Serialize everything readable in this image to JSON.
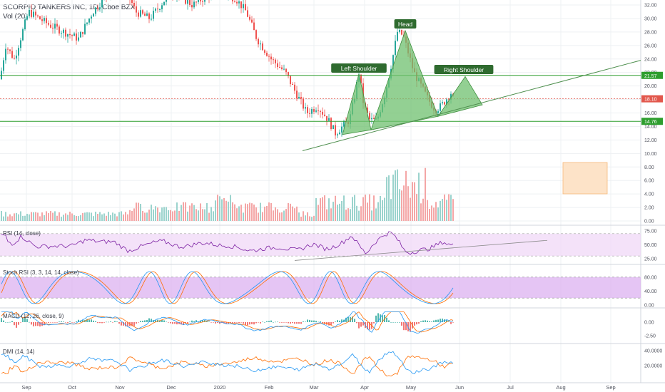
{
  "header": {
    "symbol": "SCORPIO TANKERS INC, 1D, Cboe BZX",
    "volume_label": "Vol (20)"
  },
  "colors": {
    "up": "#26a69a",
    "down": "#ef5350",
    "grid": "#eef0f3",
    "level": "#2e9e2e",
    "pattern_fill": "#6fc06f",
    "trendline": "#4e8f4e",
    "price_line": "#e2574c",
    "rsi_line": "#7b1fa2",
    "rsi_band": "#efd6f7",
    "stoch_band": "#dcb1f0",
    "k_line": "#2196f3",
    "d_line": "#ff6d00",
    "macd_line": "#2196f3",
    "signal_line": "#ff6d00",
    "dmi_plus": "#2196f3",
    "dmi_minus": "#ff6d00",
    "label_bg": "#2f6b2f",
    "orange_box": "#fde3c8"
  },
  "chart_data": {
    "type": "candlestick",
    "timeframe": "1D",
    "x_labels": [
      "Sep",
      "Oct",
      "Nov",
      "Dec",
      "2020",
      "Feb",
      "Mar",
      "Apr",
      "May",
      "Jun",
      "Jul",
      "Aug",
      "Sep"
    ],
    "price_axis": {
      "ticks": [
        "32.00",
        "30.00",
        "28.00",
        "26.00",
        "24.00",
        "22.00",
        "20.00",
        "18.00",
        "16.00",
        "14.00",
        "12.00",
        "10.00",
        "8.00",
        "6.00",
        "4.00",
        "2.00",
        "0.00"
      ],
      "range": [
        0,
        32
      ]
    },
    "price_markers": [
      {
        "label": "21.57",
        "value": 21.57,
        "kind": "resistance"
      },
      {
        "label": "18.10",
        "value": 18.1,
        "kind": "last"
      },
      {
        "label": "14.76",
        "value": 14.76,
        "kind": "support"
      }
    ],
    "pattern": {
      "name": "head-and-shoulders",
      "labels": [
        "Left Shoulder",
        "Head",
        "Right Shoulder"
      ],
      "neckline": "rising"
    },
    "rsi": {
      "title": "RSI (14, close)",
      "ticks": [
        "75.00",
        "50.00",
        "25.00"
      ],
      "bands": [
        70,
        30
      ],
      "last": 49
    },
    "stoch_rsi": {
      "title": "Stoch RSI (3, 3, 14, 14, close)",
      "ticks": [
        "80.00",
        "40.00",
        "0.00"
      ],
      "bands": [
        80,
        20
      ]
    },
    "macd": {
      "title": "MACD (12, 26, close, 9)",
      "ticks": [
        "0.00",
        "-2.50"
      ]
    },
    "dmi": {
      "title": "DMI (14, 14)",
      "ticks": [
        "40.0000",
        "20.0000"
      ]
    }
  }
}
